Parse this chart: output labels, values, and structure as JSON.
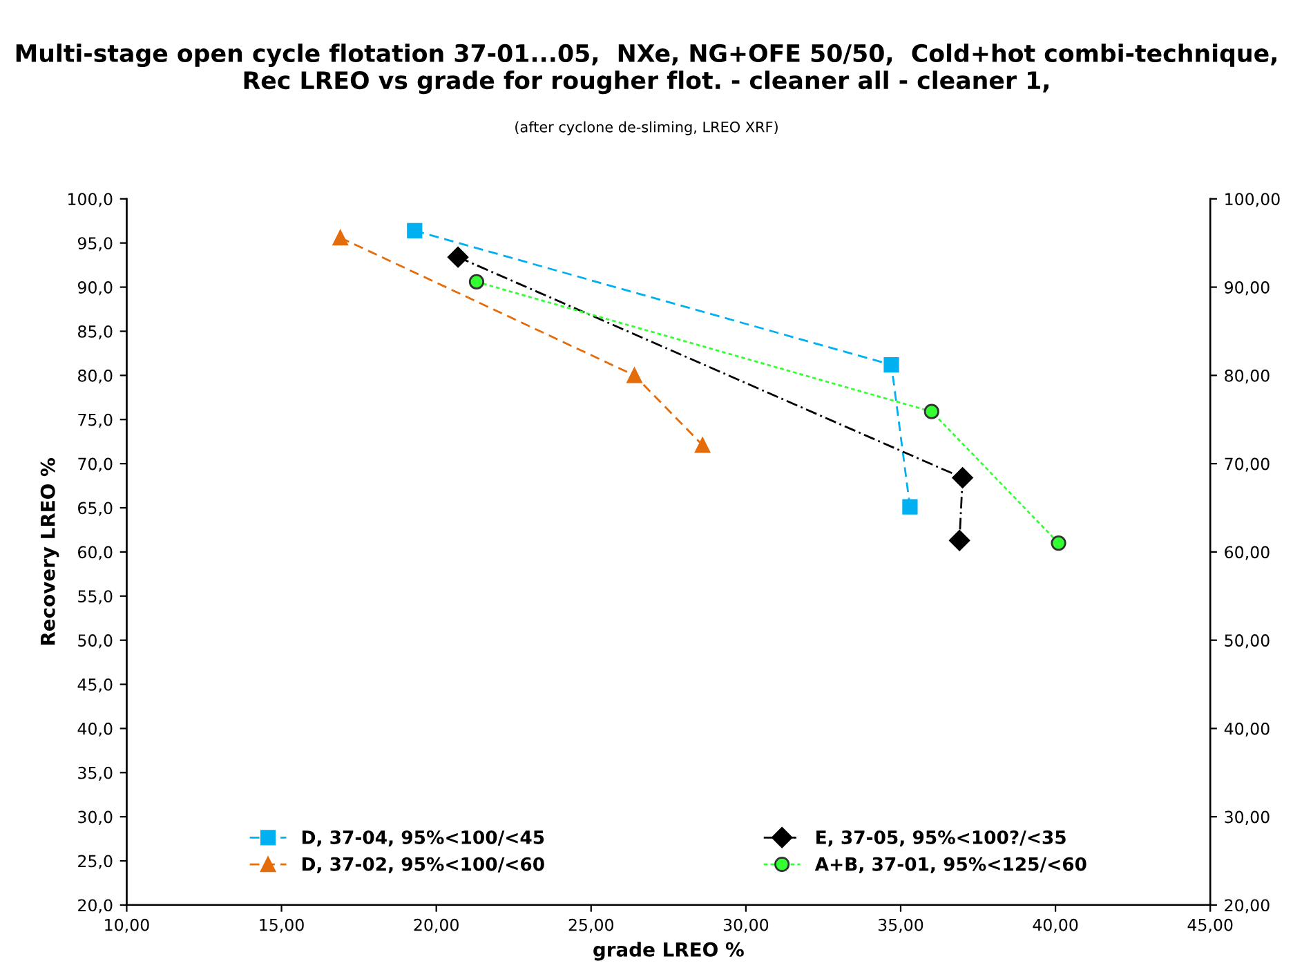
{
  "chart_data": {
    "type": "line",
    "title": "Multi-stage open cycle flotation 37-01...05,  NXe, NG+OFE 50/50,  Cold+hot combi-technique, Rec LREO vs grade for rougher flot. - cleaner all - cleaner 1,",
    "subtitle": "(after cyclone de-sliming, LREO XRF)",
    "xlabel": "grade LREO %",
    "ylabel": "Recovery LREO %",
    "series": [
      {
        "name": "D, 37-04, 95%<100/<45",
        "color": "#00b0f0",
        "marker": "square",
        "line_style": "dashed",
        "x": [
          19.3,
          34.7,
          35.3
        ],
        "values": [
          96.4,
          81.2,
          65.1
        ]
      },
      {
        "name": "D, 37-02, 95%<100/<60",
        "color": "#e46c0a",
        "marker": "triangle",
        "line_style": "dashed",
        "x": [
          16.9,
          26.4,
          28.6
        ],
        "values": [
          95.6,
          80.0,
          72.1
        ]
      },
      {
        "name": "E, 37-05, 95%<100?/<35",
        "color": "#000000",
        "marker": "diamond",
        "line_style": "dashdot",
        "x": [
          20.7,
          37.0,
          36.9
        ],
        "values": [
          93.4,
          68.4,
          61.3
        ]
      },
      {
        "name": "A+B, 37-01, 95%<125/<60",
        "color": "#33ff33",
        "marker": "circle",
        "line_style": "dotted",
        "x": [
          21.3,
          36.0,
          40.1
        ],
        "values": [
          90.6,
          75.9,
          61.0
        ]
      }
    ],
    "xlim": [
      10,
      45
    ],
    "xticks": [
      {
        "value": 10,
        "label": "10,00"
      },
      {
        "value": 15,
        "label": "15,00"
      },
      {
        "value": 20,
        "label": "20,00"
      },
      {
        "value": 25,
        "label": "25,00"
      },
      {
        "value": 30,
        "label": "30,00"
      },
      {
        "value": 35,
        "label": "35,00"
      },
      {
        "value": 40,
        "label": "40,00"
      },
      {
        "value": 45,
        "label": "45,00"
      }
    ],
    "ylim": [
      20,
      100
    ],
    "yticks": [
      {
        "value": 20,
        "label": "20,0"
      },
      {
        "value": 25,
        "label": "25,0"
      },
      {
        "value": 30,
        "label": "30,0"
      },
      {
        "value": 35,
        "label": "35,0"
      },
      {
        "value": 40,
        "label": "40,0"
      },
      {
        "value": 45,
        "label": "45,0"
      },
      {
        "value": 50,
        "label": "50,0"
      },
      {
        "value": 55,
        "label": "55,0"
      },
      {
        "value": 60,
        "label": "60,0"
      },
      {
        "value": 65,
        "label": "65,0"
      },
      {
        "value": 70,
        "label": "70,0"
      },
      {
        "value": 75,
        "label": "75,0"
      },
      {
        "value": 80,
        "label": "80,0"
      },
      {
        "value": 85,
        "label": "85,0"
      },
      {
        "value": 90,
        "label": "90,0"
      },
      {
        "value": 95,
        "label": "95,0"
      },
      {
        "value": 100,
        "label": "100,0"
      }
    ],
    "y2lim": [
      20,
      100
    ],
    "y2ticks": [
      {
        "value": 20,
        "label": "20,00"
      },
      {
        "value": 30,
        "label": "30,00"
      },
      {
        "value": 40,
        "label": "40,00"
      },
      {
        "value": 50,
        "label": "50,00"
      },
      {
        "value": 60,
        "label": "60,00"
      },
      {
        "value": 70,
        "label": "70,00"
      },
      {
        "value": 80,
        "label": "80,00"
      },
      {
        "value": 90,
        "label": "90,00"
      },
      {
        "value": 100,
        "label": "100,00"
      }
    ],
    "grid": false,
    "legend": "bottom"
  }
}
